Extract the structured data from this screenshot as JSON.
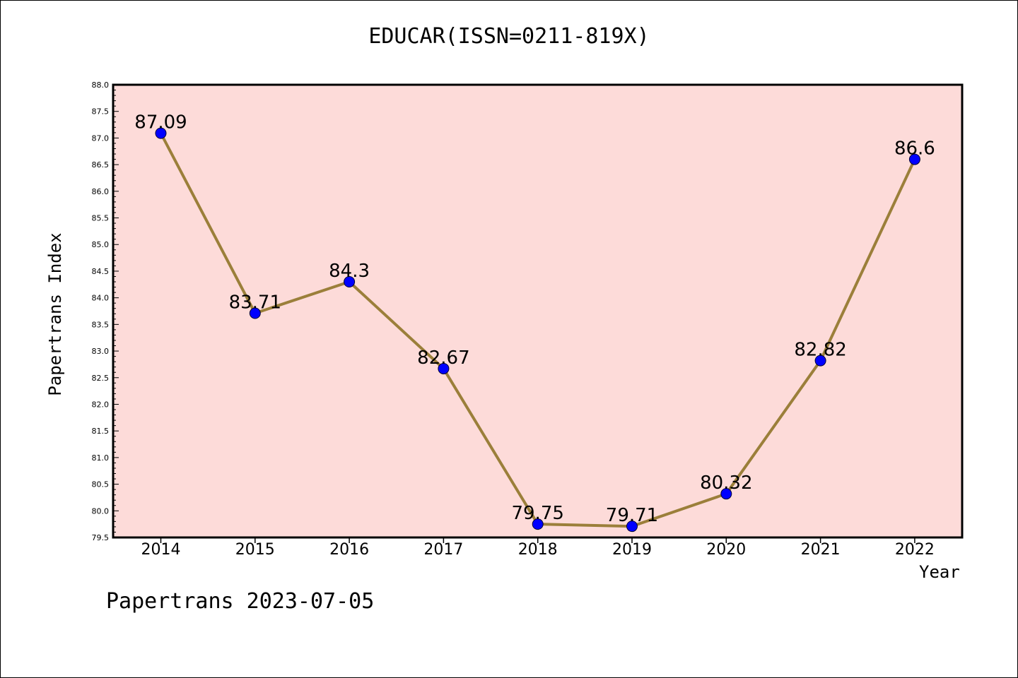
{
  "chart_data": {
    "type": "line",
    "title": "EDUCAR(ISSN=0211-819X)",
    "xlabel": "Year",
    "ylabel": "Papertrans Index",
    "x": [
      "2014",
      "2015",
      "2016",
      "2017",
      "2018",
      "2019",
      "2020",
      "2021",
      "2022"
    ],
    "series": [
      {
        "values": [
          87.09,
          83.71,
          84.3,
          82.67,
          79.75,
          79.71,
          80.32,
          82.82,
          86.6
        ],
        "data_labels": [
          "87.09",
          "83.71",
          "84.3",
          "82.67",
          "79.75",
          "79.71",
          "80.32",
          "82.82",
          "86.6"
        ]
      }
    ],
    "ylim": [
      79.5,
      88.0
    ],
    "yticks": [
      "79.5",
      "80.0",
      "80.5",
      "81.0",
      "81.5",
      "82.0",
      "82.5",
      "83.0",
      "83.5",
      "84.0",
      "84.5",
      "85.0",
      "85.5",
      "86.0",
      "86.5",
      "87.0",
      "87.5",
      "88.0"
    ],
    "grid": false,
    "colors": {
      "plot_background": "#FDDBD9",
      "line": "#9B7F3A",
      "marker": "#0000FF"
    }
  },
  "footer": "Papertrans 2023-07-05"
}
